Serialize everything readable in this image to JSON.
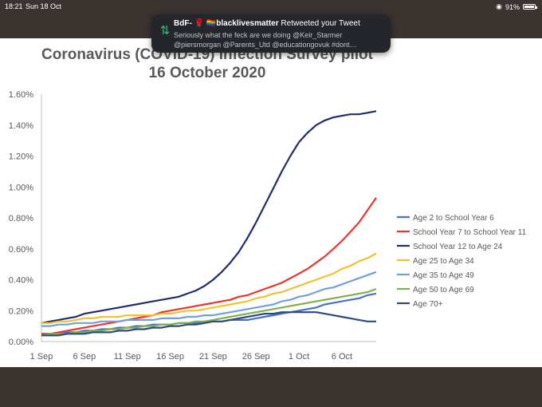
{
  "status_bar": {
    "time": "18:21",
    "date": "Sun 18 Oct",
    "battery": "91%"
  },
  "notification": {
    "sender": "BdF-",
    "emoji_1": "🌹",
    "emoji_2": "🏳️‍🌈",
    "handle_text": "blacklivesmatter",
    "action": "Retweeted your Tweet",
    "line1": "Seriously what the feck are we doing @Keir_Starmer",
    "line2": "@piersmorgan @Parents_Utd @educationgovuk #dont…",
    "icon": "retweet-icon"
  },
  "chart_title": {
    "line1": "Coronavirus (COVID-19) Infection Survey pilot",
    "line2": "16 October 2020"
  },
  "chart_data": {
    "type": "line",
    "x": [
      1,
      2,
      3,
      4,
      5,
      6,
      7,
      8,
      9,
      10,
      11,
      12,
      13,
      14,
      15,
      16,
      17,
      18,
      19,
      20,
      21,
      22,
      23,
      24,
      25,
      26,
      27,
      28,
      29,
      30,
      31,
      32,
      33,
      34,
      35,
      36,
      37,
      38,
      39,
      40
    ],
    "x_ticks": [
      {
        "x": 1,
        "label": "1 Sep"
      },
      {
        "x": 6,
        "label": "6 Sep"
      },
      {
        "x": 11,
        "label": "11 Sep"
      },
      {
        "x": 16,
        "label": "16 Sep"
      },
      {
        "x": 21,
        "label": "21 Sep"
      },
      {
        "x": 26,
        "label": "26 Sep"
      },
      {
        "x": 31,
        "label": "1 Oct"
      },
      {
        "x": 36,
        "label": "6 Oct"
      }
    ],
    "ylim": [
      0,
      1.6
    ],
    "y_ticks": [
      "0.00%",
      "0.20%",
      "0.40%",
      "0.60%",
      "0.80%",
      "1.00%",
      "1.20%",
      "1.40%",
      "1.60%"
    ],
    "grid": false,
    "legend_position": "right",
    "series": [
      {
        "name": "Age 2 to School Year 6",
        "color": "#4472c4",
        "values": [
          0.05,
          0.05,
          0.05,
          0.06,
          0.06,
          0.07,
          0.07,
          0.08,
          0.08,
          0.09,
          0.09,
          0.1,
          0.1,
          0.11,
          0.11,
          0.11,
          0.12,
          0.12,
          0.12,
          0.13,
          0.13,
          0.13,
          0.14,
          0.14,
          0.14,
          0.15,
          0.16,
          0.17,
          0.18,
          0.19,
          0.2,
          0.21,
          0.22,
          0.24,
          0.25,
          0.26,
          0.27,
          0.28,
          0.3,
          0.31
        ]
      },
      {
        "name": "School Year 7 to School Year 11",
        "color": "#e8362d",
        "values": [
          0.05,
          0.05,
          0.06,
          0.07,
          0.08,
          0.09,
          0.1,
          0.11,
          0.12,
          0.13,
          0.14,
          0.15,
          0.16,
          0.17,
          0.19,
          0.2,
          0.21,
          0.22,
          0.23,
          0.24,
          0.25,
          0.26,
          0.27,
          0.29,
          0.3,
          0.32,
          0.34,
          0.36,
          0.38,
          0.41,
          0.44,
          0.47,
          0.51,
          0.55,
          0.6,
          0.65,
          0.71,
          0.77,
          0.85,
          0.93
        ]
      },
      {
        "name": "School Year 12 to Age 24",
        "color": "#1f2d6b",
        "values": [
          0.12,
          0.13,
          0.14,
          0.15,
          0.16,
          0.18,
          0.19,
          0.2,
          0.21,
          0.22,
          0.23,
          0.24,
          0.25,
          0.26,
          0.27,
          0.28,
          0.29,
          0.31,
          0.33,
          0.36,
          0.4,
          0.45,
          0.51,
          0.58,
          0.67,
          0.77,
          0.88,
          0.99,
          1.1,
          1.2,
          1.29,
          1.35,
          1.4,
          1.43,
          1.45,
          1.46,
          1.47,
          1.47,
          1.48,
          1.49
        ]
      },
      {
        "name": "Age 25 to Age 34",
        "color": "#f2c12e",
        "values": [
          0.12,
          0.12,
          0.13,
          0.13,
          0.14,
          0.15,
          0.15,
          0.16,
          0.16,
          0.16,
          0.17,
          0.17,
          0.17,
          0.17,
          0.18,
          0.18,
          0.19,
          0.2,
          0.2,
          0.21,
          0.22,
          0.23,
          0.24,
          0.25,
          0.26,
          0.28,
          0.29,
          0.31,
          0.32,
          0.34,
          0.36,
          0.38,
          0.4,
          0.42,
          0.44,
          0.47,
          0.49,
          0.52,
          0.54,
          0.57
        ]
      },
      {
        "name": "Age 35 to Age 49",
        "color": "#6fa0dc",
        "values": [
          0.1,
          0.1,
          0.11,
          0.11,
          0.12,
          0.12,
          0.12,
          0.13,
          0.13,
          0.13,
          0.14,
          0.14,
          0.14,
          0.14,
          0.15,
          0.15,
          0.15,
          0.16,
          0.16,
          0.17,
          0.17,
          0.18,
          0.19,
          0.2,
          0.21,
          0.22,
          0.23,
          0.24,
          0.26,
          0.27,
          0.29,
          0.3,
          0.32,
          0.34,
          0.35,
          0.37,
          0.39,
          0.41,
          0.43,
          0.45
        ]
      },
      {
        "name": "Age 50 to Age 69",
        "color": "#7fb04a",
        "values": [
          0.04,
          0.05,
          0.05,
          0.05,
          0.06,
          0.06,
          0.07,
          0.07,
          0.08,
          0.08,
          0.09,
          0.09,
          0.1,
          0.1,
          0.11,
          0.11,
          0.12,
          0.12,
          0.13,
          0.13,
          0.14,
          0.15,
          0.16,
          0.17,
          0.18,
          0.19,
          0.2,
          0.21,
          0.22,
          0.23,
          0.24,
          0.25,
          0.26,
          0.27,
          0.28,
          0.29,
          0.3,
          0.31,
          0.32,
          0.34
        ]
      },
      {
        "name": "Age 70+",
        "color": "#2e4a7d",
        "values": [
          0.04,
          0.04,
          0.04,
          0.05,
          0.05,
          0.05,
          0.06,
          0.06,
          0.06,
          0.07,
          0.07,
          0.08,
          0.08,
          0.09,
          0.09,
          0.1,
          0.1,
          0.11,
          0.11,
          0.12,
          0.13,
          0.13,
          0.14,
          0.15,
          0.16,
          0.17,
          0.18,
          0.18,
          0.19,
          0.19,
          0.19,
          0.19,
          0.19,
          0.18,
          0.17,
          0.16,
          0.15,
          0.14,
          0.13,
          0.13
        ]
      }
    ]
  }
}
